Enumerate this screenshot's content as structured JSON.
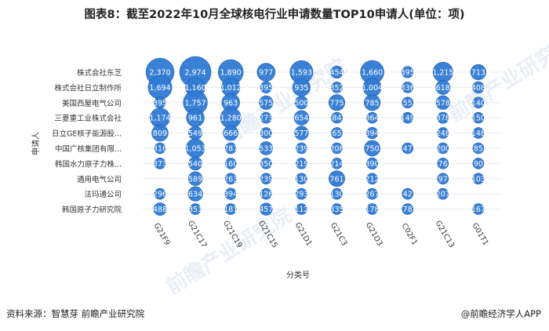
{
  "title": "图表8：截至2022年10月全球核电行业申请数量TOP10申请人(单位：项)",
  "footer": {
    "source": "资料来源：智慧芽 前瞻产业研究院",
    "brand": "@前瞻经济学人APP"
  },
  "watermark": "前瞻产业研究院",
  "colors": {
    "bubble": "#2f7ad4",
    "bubble_edge": "#1e5fae",
    "label": "#ffffff",
    "grid": "#e8ecf2"
  },
  "chart_data": {
    "type": "bubble",
    "title": "图表8：截至2022年10月全球核电行业申请数量TOP10申请人(单位：项)",
    "xlabel": "分类号",
    "ylabel": "申请人",
    "categories": [
      "G21F9",
      "G21C17",
      "G21C19",
      "G21C15",
      "G21D1",
      "G21C3",
      "G21D3",
      "C02F1",
      "G21C13",
      "G01T1"
    ],
    "applicants": [
      "株式会社东芝",
      "株式会社日立制作所",
      "美国西屋电气公司",
      "三菱重工业株式会社",
      "日立GE核子能源股...",
      "中国广核集团有限...",
      "韩国水力原子力株...",
      "通用电气公司",
      "法玛通公司",
      "韩国原子力研究院"
    ],
    "values": [
      [
        2370,
        2974,
        1890,
        977,
        1593,
        454,
        1660,
        395,
        1215,
        713
      ],
      [
        1694,
        1160,
        1012,
        395,
        935,
        352,
        1004,
        336,
        618,
        408
      ],
      [
        395,
        1757,
        963,
        575,
        500,
        775,
        785,
        55,
        578,
        140
      ],
      [
        1174,
        961,
        1280,
        273,
        654,
        84,
        364,
        149,
        378,
        150
      ],
      [
        809,
        549,
        666,
        300,
        577,
        65,
        394,
        null,
        248,
        148
      ],
      [
        316,
        1053,
        287,
        533,
        239,
        208,
        750,
        47,
        200,
        85
      ],
      [
        373,
        540,
        160,
        350,
        219,
        214,
        390,
        null,
        76,
        90
      ],
      [
        null,
        589,
        263,
        239,
        130,
        761,
        212,
        null,
        97,
        103
      ],
      [
        296,
        634,
        394,
        126,
        293,
        130,
        267,
        42,
        207,
        null
      ],
      [
        488,
        351,
        181,
        457,
        112,
        335,
        178,
        78,
        null,
        167
      ]
    ]
  }
}
